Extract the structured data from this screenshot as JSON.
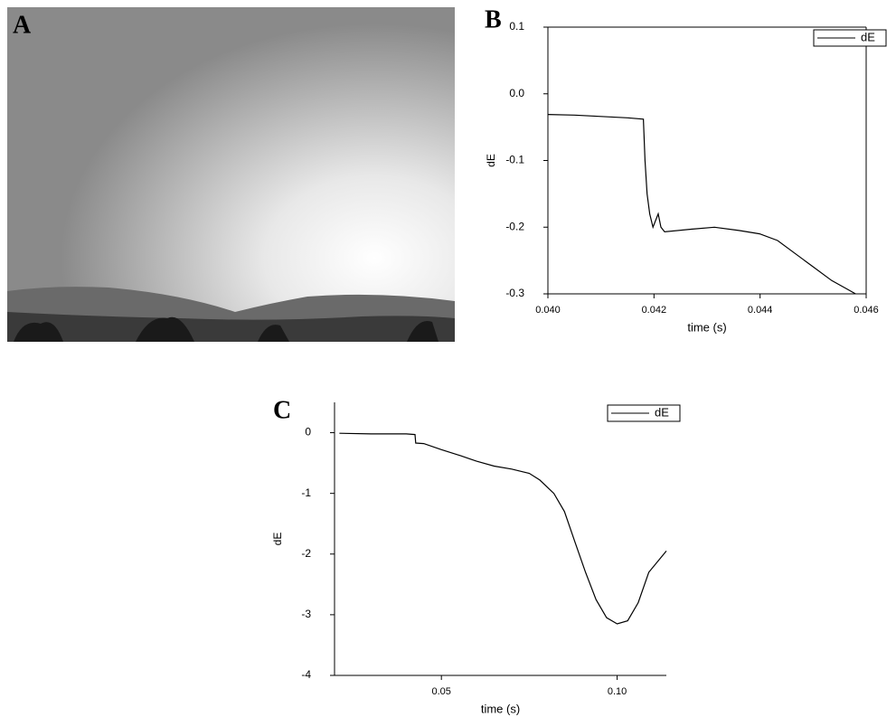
{
  "panel_labels": [
    "A",
    "B",
    "C"
  ],
  "chart_data": [
    {
      "type": "line",
      "x_label": "time (s)",
      "y_label": "dE",
      "x": [
        0.04,
        0.0405,
        0.041,
        0.0415,
        0.0418,
        0.04183,
        0.04187,
        0.04192,
        0.04198,
        0.04203,
        0.04208,
        0.04213,
        0.0422,
        0.0427,
        0.04314,
        0.0436,
        0.04399,
        0.04433,
        0.04467,
        0.04501,
        0.04535,
        0.0456,
        0.0458
      ],
      "series": [
        {
          "name": "dE",
          "color": "#000000",
          "values": [
            -0.031,
            -0.032,
            -0.034,
            -0.036,
            -0.038,
            -0.1,
            -0.15,
            -0.18,
            -0.2,
            -0.19,
            -0.18,
            -0.2,
            -0.207,
            -0.203,
            -0.2,
            -0.205,
            -0.21,
            -0.22,
            -0.24,
            -0.26,
            -0.28,
            -0.291,
            -0.3
          ]
        }
      ],
      "xlim": [
        0.04,
        0.046
      ],
      "xticks": [
        {
          "value": 0.04,
          "label": "0.040"
        },
        {
          "value": 0.042,
          "label": "0.042"
        },
        {
          "value": 0.044,
          "label": "0.044"
        },
        {
          "value": 0.046,
          "label": "0.046"
        }
      ],
      "ylim": [
        -0.3,
        0.1
      ],
      "yticks": [
        0.1,
        {
          "value": 0,
          "label": "0.0"
        },
        -0.1,
        -0.2,
        -0.3
      ],
      "legend": "upper right",
      "box": true
    },
    {
      "type": "line",
      "x_label": "time (s)",
      "y_label": "dE",
      "x": [
        0.021,
        0.03,
        0.04,
        0.0425,
        0.0427,
        0.045,
        0.05,
        0.055,
        0.06,
        0.065,
        0.07,
        0.075,
        0.078,
        0.082,
        0.085,
        0.088,
        0.091,
        0.094,
        0.097,
        0.1,
        0.103,
        0.106,
        0.109,
        0.114
      ],
      "series": [
        {
          "name": "dE",
          "color": "#000000",
          "values": [
            -0.01,
            -0.02,
            -0.02,
            -0.03,
            -0.17,
            -0.18,
            -0.28,
            -0.37,
            -0.47,
            -0.55,
            -0.6,
            -0.67,
            -0.78,
            -1.0,
            -1.3,
            -1.8,
            -2.3,
            -2.75,
            -3.05,
            -3.15,
            -3.1,
            -2.8,
            -2.3,
            -1.95
          ]
        }
      ],
      "xlim": [
        0.0196,
        0.114
      ],
      "xticks": [
        0.05,
        {
          "value": 0.1,
          "label": "0.10"
        }
      ],
      "ylim": [
        -4,
        0.5
      ],
      "yticks": [
        0,
        -1,
        -2,
        -3,
        -4
      ],
      "legend": "upper right",
      "box": false
    }
  ]
}
